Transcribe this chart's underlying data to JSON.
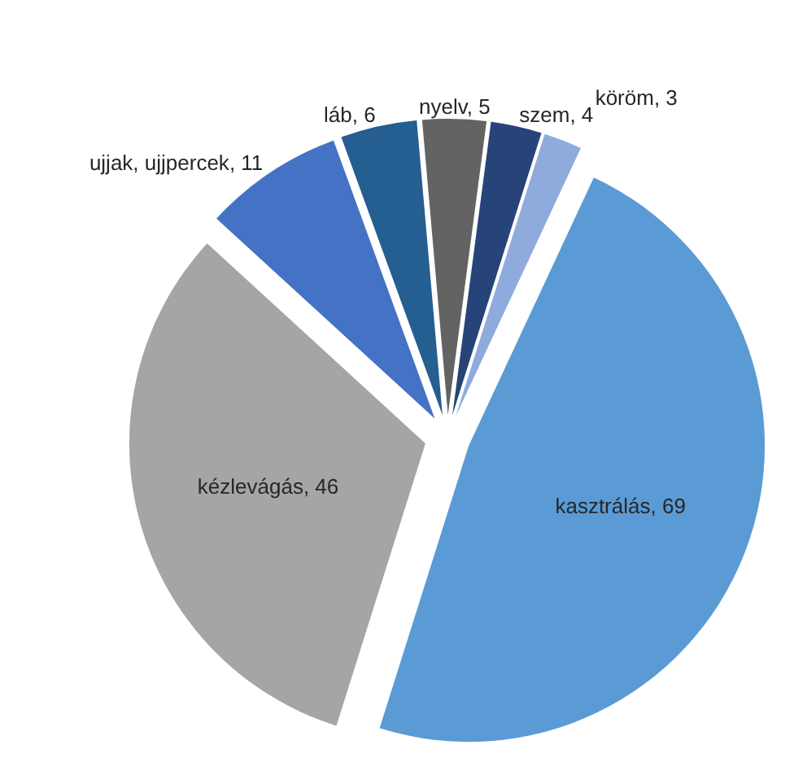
{
  "chart_data": {
    "type": "pie",
    "categories": [
      "kasztrálás",
      "kézlevágás",
      "ujjak, ujjpercek",
      "láb",
      "nyelv",
      "szem",
      "köröm"
    ],
    "values": [
      69,
      46,
      11,
      6,
      5,
      4,
      3
    ],
    "value_labels": [
      ", 69",
      ", 46",
      ", 11",
      ", 6",
      ", 5",
      ", 4",
      ", 3"
    ],
    "colors": [
      "#5b9bd5",
      "#a5a5a5",
      "#4472c4",
      "#255e91",
      "#636363",
      "#264478",
      "#8faadc"
    ]
  }
}
